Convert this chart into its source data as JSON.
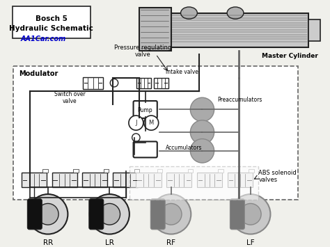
{
  "bg_color": "#f5f5f0",
  "title_text": "Bosch 5\nHydraulic Schematic",
  "website_text": "AA1Car.com",
  "blue_color": "#0000cc",
  "dark": "#222222",
  "gray": "#aaaaaa",
  "dgray": "#666666",
  "modulator_label": "Modulator",
  "pressure_valve_label": "Pressure regulating\nvalve",
  "master_cyl_label": "Master Cylinder",
  "switch_over_label": "Switch over\nvalve",
  "intake_valve_label": "Intake valve",
  "preaccumulators_label": "Preaccumulators",
  "pump_label": "Pump",
  "accumulators_label": "Accumulators",
  "abs_label": "ABS solenoid\nvalves",
  "wheel_labels": [
    "RR",
    "LR",
    "RF",
    "LF"
  ]
}
